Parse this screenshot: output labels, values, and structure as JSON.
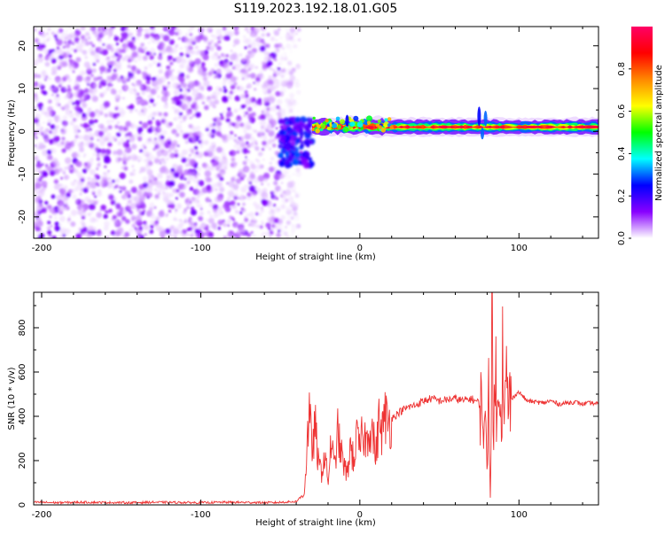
{
  "title": "S119.2023.192.18.01.G05",
  "chart_data": [
    {
      "type": "heatmap",
      "title": "S119.2023.192.18.01.G05",
      "xlabel": "Height of straight line (km)",
      "ylabel": "Frequency (Hz)",
      "xlim": [
        -205,
        150
      ],
      "ylim": [
        -25,
        24.5
      ],
      "x_ticks": [
        -200,
        -100,
        0,
        100
      ],
      "y_ticks": [
        -20,
        -10,
        0,
        10,
        20
      ],
      "colorbar": {
        "label": "Normalized spectral amplitude",
        "range": [
          0,
          1
        ],
        "ticks": [
          0.0,
          0.2,
          0.4,
          0.6,
          0.8
        ],
        "colormap": [
          "#ffffff",
          "#8800ff",
          "#0000ff",
          "#00ffff",
          "#00ff00",
          "#ffff00",
          "#ff8800",
          "#ff0000",
          "#ff0066"
        ]
      },
      "regions": [
        {
          "description": "noise",
          "x_range": [
            -205,
            -50
          ],
          "freq_range": [
            -25,
            24.5
          ],
          "amplitude_range": [
            0.0,
            0.15
          ]
        },
        {
          "description": "onset",
          "x_range": [
            -50,
            -30
          ],
          "freq_range": [
            -8,
            3
          ],
          "amplitude_range": [
            0.1,
            0.3
          ]
        },
        {
          "description": "tonal line",
          "x_range": [
            -30,
            150
          ],
          "center_freq": 1.0,
          "amplitude_range": [
            0.6,
            1.0
          ]
        }
      ]
    },
    {
      "type": "line",
      "xlabel": "Height of straight line (km)",
      "ylabel": "SNR (10 * v/v)",
      "xlim": [
        -205,
        150
      ],
      "ylim": [
        0,
        960
      ],
      "x_ticks": [
        -200,
        -100,
        0,
        100
      ],
      "y_ticks": [
        0,
        200,
        400,
        600,
        800
      ],
      "color": "#ee3333",
      "series": [
        {
          "x": [
            -205,
            -190,
            -175,
            -160,
            -145,
            -130,
            -115,
            -100,
            -85,
            -70,
            -55,
            -40,
            -35,
            -34,
            -32,
            -30,
            -28,
            -26,
            -24,
            -22,
            -20,
            -18,
            -16,
            -14,
            -12,
            -10,
            -8,
            -6,
            -4,
            -2,
            0,
            2,
            4,
            6,
            8,
            10,
            12,
            14,
            16,
            18,
            20,
            25,
            30,
            35,
            40,
            45,
            50,
            55,
            60,
            65,
            70,
            75,
            78,
            80,
            81,
            82,
            83,
            84,
            85,
            86,
            87,
            88,
            89,
            90,
            91,
            92,
            93,
            94,
            96,
            98,
            100,
            105,
            110,
            115,
            120,
            125,
            130,
            135,
            140,
            145,
            150
          ],
          "y": [
            12,
            10,
            12,
            11,
            10,
            12,
            11,
            10,
            12,
            11,
            10,
            15,
            50,
            150,
            420,
            250,
            350,
            180,
            150,
            230,
            100,
            290,
            160,
            330,
            240,
            180,
            130,
            270,
            200,
            300,
            250,
            330,
            280,
            360,
            330,
            220,
            370,
            330,
            400,
            370,
            390,
            420,
            440,
            450,
            470,
            480,
            470,
            475,
            480,
            470,
            480,
            460,
            400,
            200,
            580,
            30,
            870,
            150,
            900,
            250,
            500,
            700,
            350,
            830,
            400,
            560,
            420,
            470,
            480,
            500,
            510,
            470,
            465,
            460,
            470,
            455,
            460,
            465,
            455,
            460,
            455
          ]
        }
      ]
    }
  ]
}
